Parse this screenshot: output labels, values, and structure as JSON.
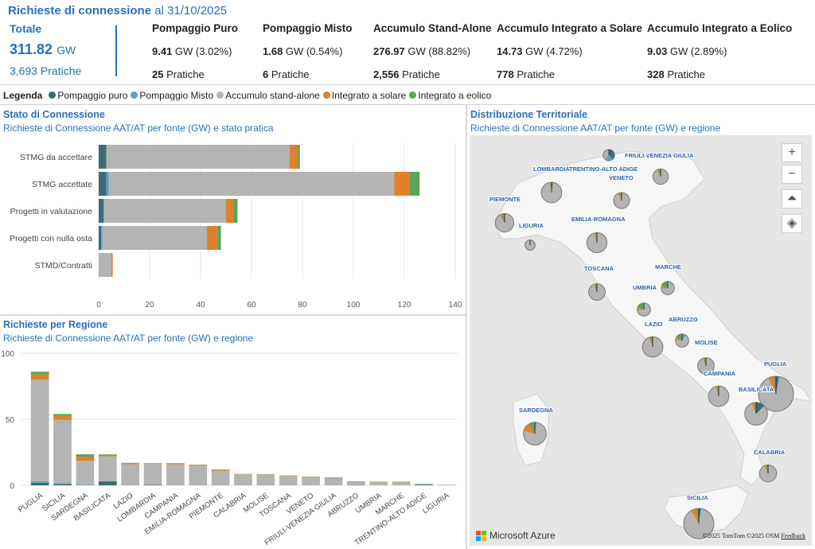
{
  "header": {
    "title_bold": "Richieste di connessione",
    "title_rest": " al 31/10/2025"
  },
  "total": {
    "label": "Totale",
    "value": "311.82",
    "unit": "GW",
    "pratiche": "3,693 Pratiche"
  },
  "kpis": [
    {
      "title": "Pompaggio Puro",
      "value": "9.41",
      "rest": " GW (3.02%)",
      "pnum": "25",
      "plabel": " Pratiche"
    },
    {
      "title": "Pompaggio Misto",
      "value": "1.68",
      "rest": " GW (0.54%)",
      "pnum": "6",
      "plabel": " Pratiche"
    },
    {
      "title": "Accumulo Stand-Alone",
      "value": "276.97",
      "rest": " GW (88.82%)",
      "pnum": "2,556",
      "plabel": " Pratiche"
    },
    {
      "title": "Accumulo Integrato a Solare",
      "value": "14.73",
      "rest": " GW (4.72%)",
      "pnum": "778",
      "plabel": " Pratiche"
    },
    {
      "title": "Accumulo Integrato a Eolico",
      "value": "9.03",
      "rest": " GW (2.89%)",
      "pnum": "328",
      "plabel": " Pratiche"
    }
  ],
  "legend": {
    "title": "Legenda",
    "items": [
      {
        "label": "Pompaggio puro",
        "color": "#3d6b78"
      },
      {
        "label": "Pompaggio Misto",
        "color": "#5aa0c8"
      },
      {
        "label": "Accumulo stand-alone",
        "color": "#b4b4b4"
      },
      {
        "label": "Integrato a solare",
        "color": "#e0802b"
      },
      {
        "label": "Integrato a eolico",
        "color": "#5aa55a"
      }
    ]
  },
  "stato": {
    "title": "Stato di Connessione",
    "subtitle": "Richieste di Connessione AAT/AT per fonte (GW) e stato pratica"
  },
  "regione": {
    "title": "Richieste per Regione",
    "subtitle": "Richieste di Connessione AAT/AT per fonte (GW) e regione"
  },
  "mappa": {
    "title": "Distribuzione Territoriale",
    "subtitle": "Richieste di Connessione AAT/AT per fonte (GW) e regione",
    "brand": "Microsoft Azure",
    "copyright": "©2025 TomTom  ©2025 OSM",
    "feedback": "Feedback",
    "controls": [
      "+",
      "−",
      "⏶",
      "◈"
    ]
  },
  "chart_data": [
    {
      "type": "bar",
      "orientation": "horizontal",
      "stacked": true,
      "categories": [
        "STMG da accettare",
        "STMG accettate",
        "Progetti in valutazione",
        "Progetti con nulla osta",
        "STMD/Contratti"
      ],
      "series": [
        {
          "name": "Pompaggio puro",
          "color": "#3d6b78",
          "values": [
            3,
            3,
            2,
            1,
            0
          ]
        },
        {
          "name": "Pompaggio Misto",
          "color": "#5aa0c8",
          "values": [
            0,
            1,
            0,
            0.5,
            0
          ]
        },
        {
          "name": "Accumulo stand-alone",
          "color": "#b4b4b4",
          "values": [
            72,
            112,
            48,
            41,
            5
          ]
        },
        {
          "name": "Integrato a solare",
          "color": "#e0802b",
          "values": [
            3,
            6,
            3,
            4,
            0.5
          ]
        },
        {
          "name": "Integrato a eolico",
          "color": "#5aa55a",
          "values": [
            1,
            4,
            1.5,
            1.5,
            0
          ]
        }
      ],
      "xlim": [
        0,
        140
      ],
      "xticks": [
        0,
        20,
        40,
        60,
        80,
        100,
        120,
        140
      ],
      "grid": true
    },
    {
      "type": "bar",
      "stacked": true,
      "categories": [
        "PUGLIA",
        "SICILIA",
        "SARDEGNA",
        "BASILICATA",
        "LAZIO",
        "LOMBARDIA",
        "CAMPANIA",
        "EMILIA-ROMAGNA",
        "PIEMONTE",
        "CALABRIA",
        "MOLISE",
        "TOSCANA",
        "VENETO",
        "FRIULI-VENEZIA GIULIA",
        "ABRUZZO",
        "UMBRIA",
        "MARCHE",
        "TRENTINO-ALTO ADIGE",
        "LIGURIA"
      ],
      "series": [
        {
          "name": "Pompaggio puro",
          "color": "#3d6b78",
          "values": [
            2,
            1,
            0,
            3,
            0,
            0.3,
            0,
            0,
            0,
            0,
            0,
            0,
            0,
            0,
            0,
            0,
            0,
            0.5,
            0
          ]
        },
        {
          "name": "Pompaggio Misto",
          "color": "#5aa0c8",
          "values": [
            1,
            0.5,
            0.5,
            0,
            0,
            0,
            0,
            0,
            0,
            0,
            0,
            0,
            0,
            0,
            0.3,
            0,
            0,
            0.3,
            0
          ]
        },
        {
          "name": "Accumulo stand-alone",
          "color": "#b4b4b4",
          "values": [
            77,
            48,
            18,
            19,
            16,
            16,
            16,
            15,
            11,
            8,
            8,
            7,
            6,
            5.5,
            2,
            2,
            2,
            0.5,
            0.5
          ]
        },
        {
          "name": "Integrato a solare",
          "color": "#e0802b",
          "values": [
            4,
            3,
            3,
            1,
            0.5,
            0.3,
            0.5,
            0.5,
            0.5,
            0.3,
            0.2,
            0.3,
            0.3,
            0.2,
            0.2,
            0.2,
            0.2,
            0,
            0
          ]
        },
        {
          "name": "Integrato a eolico",
          "color": "#5aa55a",
          "values": [
            2,
            1.5,
            2,
            0.5,
            0.5,
            0.2,
            0.3,
            0.2,
            0.5,
            0.3,
            0.3,
            0.2,
            0.2,
            0.3,
            0.5,
            0.5,
            0.5,
            0,
            0
          ]
        }
      ],
      "ylim": [
        0,
        100
      ],
      "yticks": [
        0,
        50,
        100
      ],
      "grid": true
    }
  ],
  "map_regions": [
    {
      "label": "FRIULI-VENEZIA GIULIA",
      "total": 6
    },
    {
      "label": "LOMBARDIA",
      "total": 17
    },
    {
      "label": "TRENTINO-ALTO ADIGE",
      "total": 1.3
    },
    {
      "label": "VENETO",
      "total": 7
    },
    {
      "label": "PIEMONTE",
      "total": 12
    },
    {
      "label": "EMILIA-ROMAGNA",
      "total": 16
    },
    {
      "label": "LIGURIA",
      "total": 0.5
    },
    {
      "label": "TOSCANA",
      "total": 8
    },
    {
      "label": "MARCHE",
      "total": 3
    },
    {
      "label": "UMBRIA",
      "total": 3
    },
    {
      "label": "LAZIO",
      "total": 17
    },
    {
      "label": "ABRUZZO",
      "total": 3
    },
    {
      "label": "MOLISE",
      "total": 8
    },
    {
      "label": "CAMPANIA",
      "total": 17
    },
    {
      "label": "PUGLIA",
      "total": 86
    },
    {
      "label": "BASILICATA",
      "total": 24
    },
    {
      "label": "SARDEGNA",
      "total": 24
    },
    {
      "label": "CALABRIA",
      "total": 9
    },
    {
      "label": "SICILIA",
      "total": 54
    }
  ]
}
